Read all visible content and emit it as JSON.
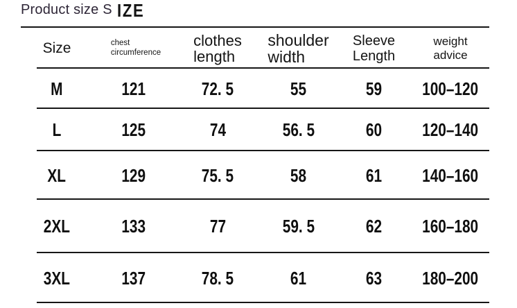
{
  "title": {
    "part1": "Product size S",
    "part2": "IZE"
  },
  "chart_data": {
    "type": "table",
    "title": "Product size SIZE",
    "columns": [
      {
        "id": "size",
        "label": "Size"
      },
      {
        "id": "chest",
        "label": "chest\ncircumference"
      },
      {
        "id": "clothes",
        "label": "clothes\nlength"
      },
      {
        "id": "shoulder",
        "label": "shoulder\nwidth"
      },
      {
        "id": "sleeve",
        "label": "Sleeve\nLength"
      },
      {
        "id": "weight",
        "label": "weight\nadvice"
      }
    ],
    "rows": [
      {
        "size": "M",
        "chest": "121",
        "clothes": "72. 5",
        "shoulder": "55",
        "sleeve": "59",
        "weight": "100–120"
      },
      {
        "size": "L",
        "chest": "125",
        "clothes": "74",
        "shoulder": "56. 5",
        "sleeve": "60",
        "weight": "120–140"
      },
      {
        "size": "XL",
        "chest": "129",
        "clothes": "75. 5",
        "shoulder": "58",
        "sleeve": "61",
        "weight": "140–160"
      },
      {
        "size": "2XL",
        "chest": "133",
        "clothes": "77",
        "shoulder": "59. 5",
        "sleeve": "62",
        "weight": "160–180"
      },
      {
        "size": "3XL",
        "chest": "137",
        "clothes": "78. 5",
        "shoulder": "61",
        "sleeve": "63",
        "weight": "180–200"
      }
    ]
  },
  "colors": {
    "background": "#ffffff",
    "title_text": "#2e2637",
    "table_text": "#0f0f0f",
    "rule": "#161616"
  }
}
